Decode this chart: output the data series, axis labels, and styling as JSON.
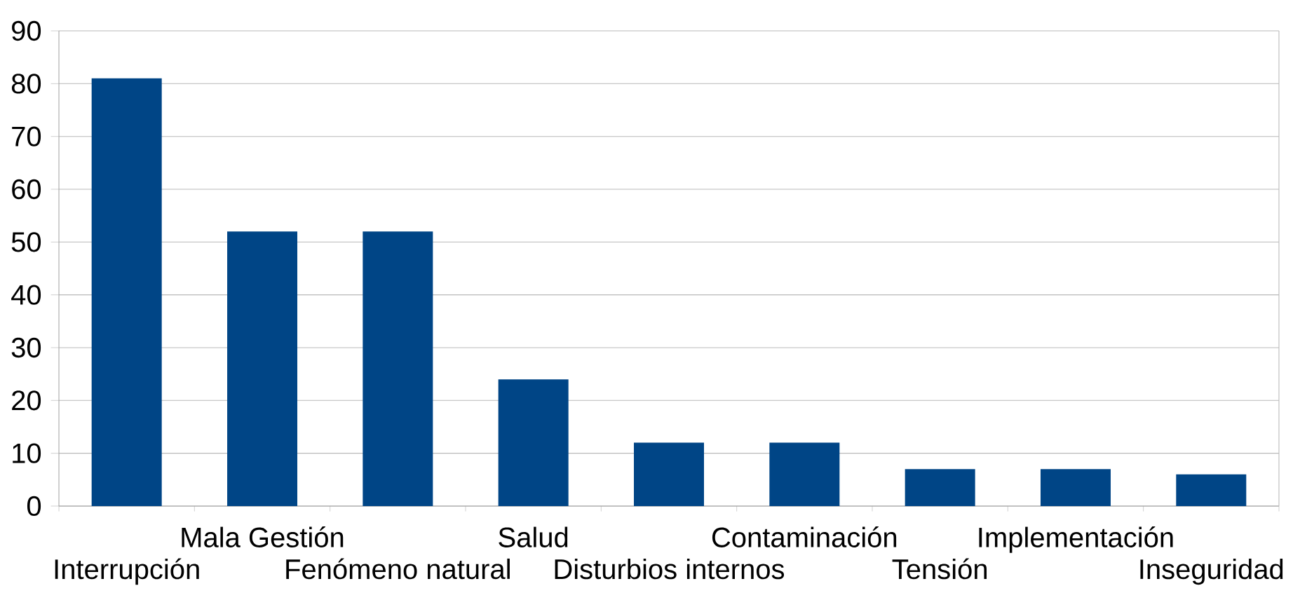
{
  "chart_data": {
    "type": "bar",
    "categories": [
      "Interrupción",
      "Mala Gestión",
      "Fenómeno natural",
      "Salud",
      "Disturbios internos",
      "Contaminación",
      "Tensión",
      "Implementación",
      "Inseguridad"
    ],
    "values": [
      81,
      52,
      52,
      24,
      12,
      12,
      7,
      7,
      6
    ],
    "color": "#004586",
    "ylim": [
      0,
      90
    ],
    "yticks": [
      0,
      10,
      20,
      30,
      40,
      50,
      60,
      70,
      80,
      90
    ],
    "grid": "y"
  }
}
